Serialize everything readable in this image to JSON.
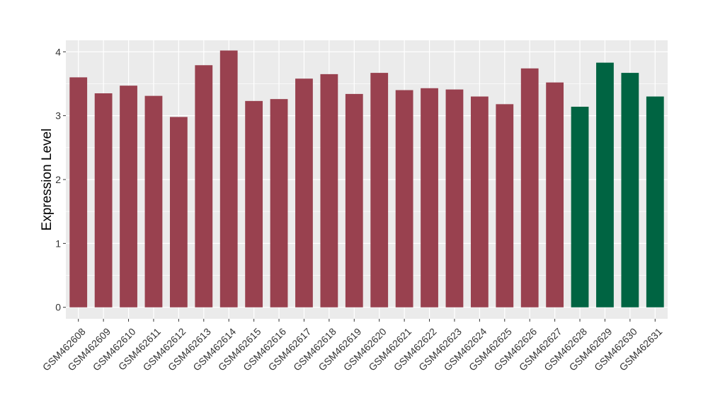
{
  "chart_data": {
    "type": "bar",
    "title": "",
    "xlabel": "",
    "ylabel": "Expression Level",
    "ylim": [
      -0.18,
      4.18
    ],
    "yticks": [
      "0",
      "1",
      "2",
      "3",
      "4"
    ],
    "grid": true,
    "legend": "none",
    "colors": {
      "group_a": "#99414f",
      "group_b": "#006442",
      "panel_bg": "#ebebeb",
      "grid": "#ffffff"
    },
    "categories": [
      "GSM462608",
      "GSM462609",
      "GSM462610",
      "GSM462611",
      "GSM462612",
      "GSM462613",
      "GSM462614",
      "GSM462615",
      "GSM462616",
      "GSM462617",
      "GSM462618",
      "GSM462619",
      "GSM462620",
      "GSM462621",
      "GSM462622",
      "GSM462623",
      "GSM462624",
      "GSM462625",
      "GSM462626",
      "GSM462627",
      "GSM462628",
      "GSM462629",
      "GSM462630",
      "GSM462631"
    ],
    "values": [
      3.6,
      3.35,
      3.47,
      3.31,
      2.98,
      3.79,
      4.02,
      3.23,
      3.26,
      3.58,
      3.65,
      3.34,
      3.67,
      3.4,
      3.43,
      3.41,
      3.3,
      3.18,
      3.74,
      3.52,
      3.14,
      3.83,
      3.67,
      3.3
    ],
    "groups": [
      "a",
      "a",
      "a",
      "a",
      "a",
      "a",
      "a",
      "a",
      "a",
      "a",
      "a",
      "a",
      "a",
      "a",
      "a",
      "a",
      "a",
      "a",
      "a",
      "a",
      "b",
      "b",
      "b",
      "b"
    ]
  }
}
